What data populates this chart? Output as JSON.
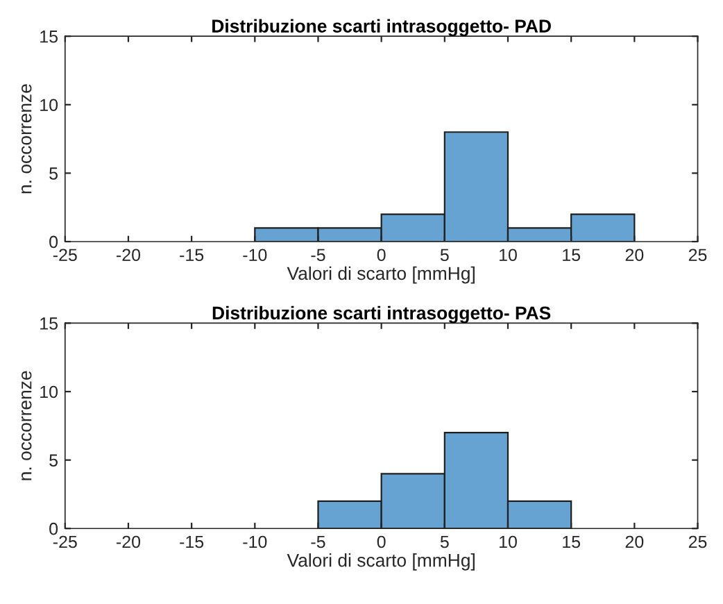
{
  "chart_data": [
    {
      "type": "histogram",
      "title": "Distribuzione scarti intrasoggetto- PAD",
      "xlabel": "Valori di scarto [mmHg]",
      "ylabel": "n. occorrenze",
      "bins": [
        -10,
        -5,
        0,
        5,
        10,
        15,
        20
      ],
      "values": [
        1,
        1,
        2,
        8,
        1,
        2
      ],
      "color": "#66a3d2",
      "xlim": [
        -25,
        25
      ],
      "xticks": [
        -25,
        -20,
        -15,
        -10,
        -5,
        0,
        5,
        10,
        15,
        20,
        25
      ],
      "ylim": [
        0,
        15
      ],
      "yticks": [
        0,
        5,
        10,
        15
      ]
    },
    {
      "type": "histogram",
      "title": "Distribuzione scarti intrasoggetto- PAS",
      "xlabel": "Valori di scarto [mmHg]",
      "ylabel": "n. occorrenze",
      "bins": [
        -5,
        0,
        5,
        10,
        15
      ],
      "values": [
        2,
        4,
        7,
        2
      ],
      "color": "#66a3d2",
      "xlim": [
        -25,
        25
      ],
      "xticks": [
        -25,
        -20,
        -15,
        -10,
        -5,
        0,
        5,
        10,
        15,
        20,
        25
      ],
      "ylim": [
        0,
        15
      ],
      "yticks": [
        0,
        5,
        10,
        15
      ]
    }
  ]
}
